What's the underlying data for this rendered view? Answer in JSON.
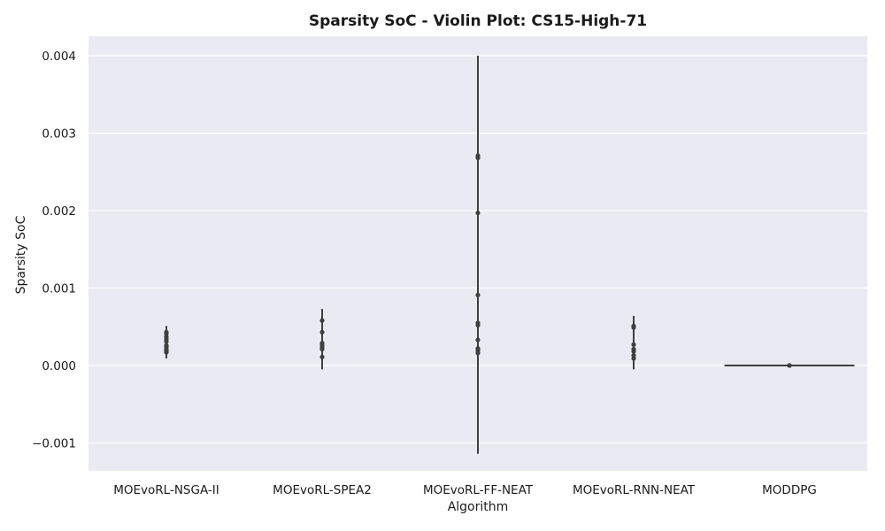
{
  "chart_data": {
    "type": "violin",
    "title": "Sparsity SoC - Violin Plot: CS15-High-71",
    "xlabel": "Algorithm",
    "ylabel": "Sparsity SoC",
    "categories": [
      "MOEvoRL-NSGA-II",
      "MOEvoRL-SPEA2",
      "MOEvoRL-FF-NEAT",
      "MOEvoRL-RNN-NEAT",
      "MODDPG"
    ],
    "ylim": [
      -0.00136,
      0.00425
    ],
    "yticks": [
      -0.001,
      0.0,
      0.001,
      0.002,
      0.003,
      0.004
    ],
    "ytick_labels": [
      "−0.001",
      "0.000",
      "0.001",
      "0.002",
      "0.003",
      "0.004"
    ],
    "grid": true,
    "series": [
      {
        "category": "MOEvoRL-NSGA-II",
        "min": 9e-05,
        "max": 0.00051,
        "max_width_frac": 0.0,
        "points": [
          0.00017,
          0.00019,
          0.00021,
          0.00024,
          0.00026,
          0.00031,
          0.00034,
          0.00037,
          0.00041,
          0.00043
        ]
      },
      {
        "category": "MOEvoRL-SPEA2",
        "min": -5e-05,
        "max": 0.00073,
        "max_width_frac": 0.0,
        "points": [
          0.00011,
          0.00021,
          0.00023,
          0.00026,
          0.00029,
          0.00043,
          0.00058
        ]
      },
      {
        "category": "MOEvoRL-FF-NEAT",
        "min": -0.00114,
        "max": 0.004,
        "max_width_frac": 0.0,
        "points": [
          0.00016,
          0.00019,
          0.00022,
          0.00033,
          0.00052,
          0.00055,
          0.00091,
          0.00197,
          0.00268,
          0.00271
        ]
      },
      {
        "category": "MOEvoRL-RNN-NEAT",
        "min": -5e-05,
        "max": 0.00064,
        "max_width_frac": 0.0,
        "points": [
          9e-05,
          0.00013,
          0.00018,
          0.00021,
          0.00027,
          0.00049,
          0.00051
        ]
      },
      {
        "category": "MODDPG",
        "min": 0.0,
        "max": 0.0,
        "max_width_frac": 0.8,
        "points": [
          0.0,
          0.0,
          0.0
        ]
      }
    ],
    "colors": {
      "plot_bg": "#eaeaf2",
      "grid": "#ffffff",
      "mark": "#3f3f3f"
    }
  }
}
